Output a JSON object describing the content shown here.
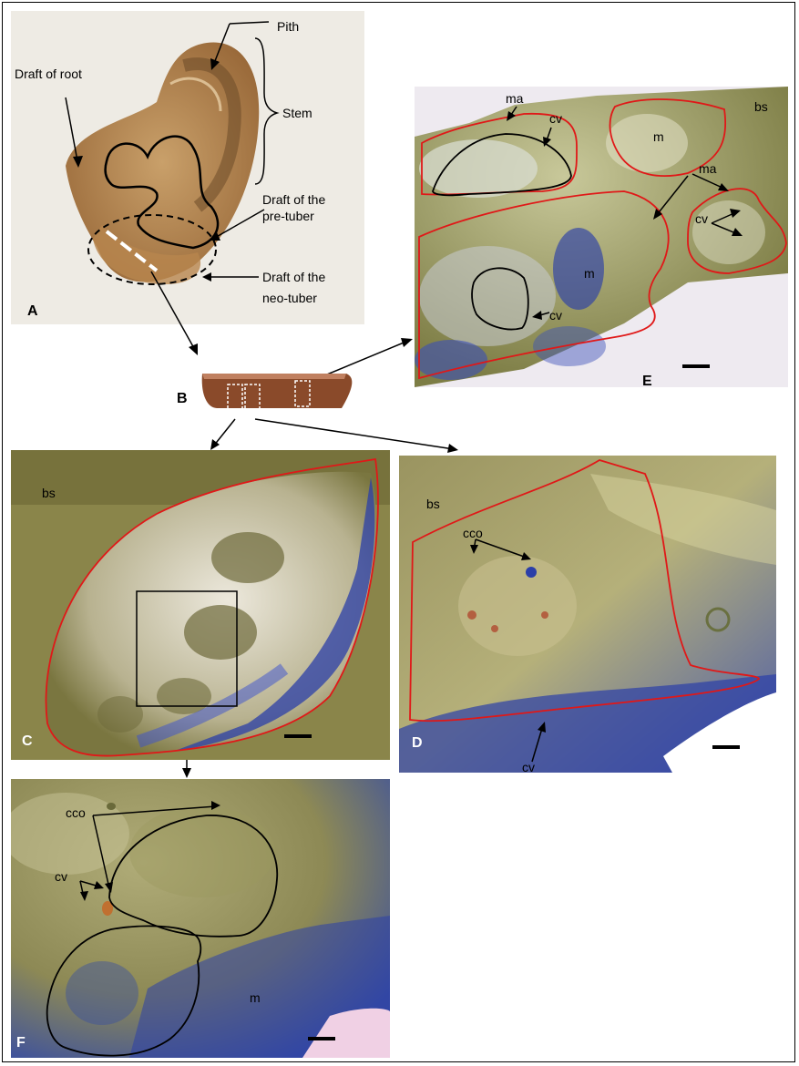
{
  "panelA": {
    "letter": "A",
    "labels": {
      "pith": "Pith",
      "stem": "Stem",
      "root": "Draft of root",
      "pre1": "Draft of the",
      "pre2": "pre-tuber",
      "neo1": "Draft of the",
      "neo2": "neo-tuber"
    }
  },
  "panelB": {
    "letter": "B"
  },
  "panelC": {
    "letter": "C",
    "bs": "bs"
  },
  "panelD": {
    "letter": "D",
    "bs": "bs",
    "cco": "cco",
    "cv": "cv"
  },
  "panelE": {
    "letter": "E",
    "bs": "bs",
    "ma_top": "ma",
    "cv_top": "cv",
    "m_top": "m",
    "ma_right": "ma",
    "cv_right": "cv",
    "m_center": "m",
    "cv_bottom": "cv"
  },
  "panelF": {
    "letter": "F",
    "cco": "cco",
    "cv": "cv",
    "m": "m"
  },
  "colors": {
    "stain_blue": "#2b3fa8",
    "tissue_olive": "#8a8a4a",
    "outline_red": "#e01818"
  }
}
